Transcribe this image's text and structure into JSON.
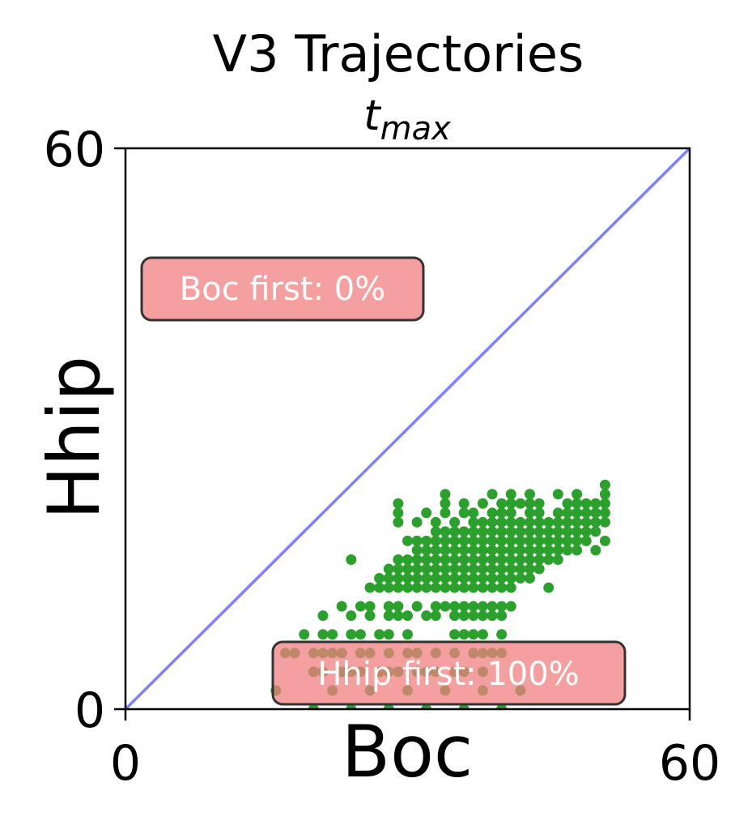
{
  "chart_data": {
    "type": "scatter",
    "title": "V3 Trajectories",
    "subtitle_base": "t",
    "subtitle_sub": "max",
    "xlabel": "Boc",
    "ylabel": "Hhip",
    "xlim": [
      0,
      60
    ],
    "ylim": [
      0,
      60
    ],
    "xticks": [
      "0",
      "60"
    ],
    "yticks": [
      "0",
      "60"
    ],
    "grid": false,
    "reference_line": {
      "from": [
        0,
        0
      ],
      "to": [
        60,
        60
      ],
      "color": "#8080ff"
    },
    "point_color": "#2ca02c",
    "annotations": [
      {
        "text": "Boc first: 0%",
        "anchor_data": [
          2,
          45
        ]
      },
      {
        "text": "Hhip first: 100%",
        "anchor_data": [
          16,
          2
        ]
      }
    ],
    "annotation_fill": "#f08080",
    "annotation_border": "#333333",
    "points": [
      [
        16,
        2
      ],
      [
        20,
        0
      ],
      [
        22,
        2
      ],
      [
        24,
        0
      ],
      [
        26,
        2
      ],
      [
        28,
        0
      ],
      [
        30,
        2
      ],
      [
        32,
        0
      ],
      [
        34,
        2
      ],
      [
        36,
        0
      ],
      [
        38,
        2
      ],
      [
        40,
        0
      ],
      [
        42,
        2
      ],
      [
        20,
        4
      ],
      [
        21,
        4
      ],
      [
        23,
        4
      ],
      [
        24,
        4
      ],
      [
        25,
        4
      ],
      [
        27,
        4
      ],
      [
        28,
        4
      ],
      [
        29,
        4
      ],
      [
        31,
        4
      ],
      [
        32,
        4
      ],
      [
        33,
        4
      ],
      [
        35,
        4
      ],
      [
        36,
        4
      ],
      [
        38,
        4
      ],
      [
        17,
        6
      ],
      [
        18,
        6
      ],
      [
        20,
        6
      ],
      [
        21,
        6
      ],
      [
        22,
        6
      ],
      [
        23,
        6
      ],
      [
        25,
        6
      ],
      [
        26,
        6
      ],
      [
        28,
        6
      ],
      [
        30,
        6
      ],
      [
        31,
        6
      ],
      [
        33,
        6
      ],
      [
        35,
        6
      ],
      [
        37,
        6
      ],
      [
        38,
        6
      ],
      [
        39,
        6
      ],
      [
        40,
        6
      ],
      [
        19,
        8
      ],
      [
        21,
        8
      ],
      [
        22,
        8
      ],
      [
        24,
        8
      ],
      [
        25,
        8
      ],
      [
        27,
        8
      ],
      [
        28,
        8
      ],
      [
        30,
        8
      ],
      [
        35,
        8
      ],
      [
        36,
        8
      ],
      [
        37,
        8
      ],
      [
        38,
        8
      ],
      [
        40,
        8
      ],
      [
        21,
        10
      ],
      [
        24,
        10
      ],
      [
        26,
        10
      ],
      [
        28,
        10
      ],
      [
        29,
        10
      ],
      [
        30,
        10
      ],
      [
        32,
        10
      ],
      [
        33,
        10
      ],
      [
        35,
        10
      ],
      [
        36,
        10
      ],
      [
        37,
        10
      ],
      [
        38,
        10
      ],
      [
        39,
        10
      ],
      [
        40,
        10
      ],
      [
        23,
        11
      ],
      [
        25,
        11
      ],
      [
        26,
        11
      ],
      [
        28,
        11
      ],
      [
        29,
        11
      ],
      [
        31,
        11
      ],
      [
        33,
        11
      ],
      [
        34,
        11
      ],
      [
        35,
        11
      ],
      [
        36,
        11
      ],
      [
        37,
        11
      ],
      [
        38,
        11
      ],
      [
        39,
        11
      ],
      [
        40,
        11
      ],
      [
        41,
        11
      ],
      [
        26,
        13
      ],
      [
        27,
        13
      ],
      [
        28,
        13
      ],
      [
        29,
        13
      ],
      [
        30,
        13
      ],
      [
        31,
        13
      ],
      [
        32,
        13
      ],
      [
        33,
        13
      ],
      [
        34,
        13
      ],
      [
        35,
        13
      ],
      [
        36,
        13
      ],
      [
        37,
        13
      ],
      [
        38,
        13
      ],
      [
        39,
        13
      ],
      [
        40,
        13
      ],
      [
        41,
        13
      ],
      [
        45,
        13
      ],
      [
        27,
        14
      ],
      [
        28,
        14
      ],
      [
        29,
        14
      ],
      [
        30,
        14
      ],
      [
        31,
        14
      ],
      [
        32,
        14
      ],
      [
        33,
        14
      ],
      [
        34,
        14
      ],
      [
        35,
        14
      ],
      [
        36,
        14
      ],
      [
        37,
        14
      ],
      [
        38,
        14
      ],
      [
        39,
        14
      ],
      [
        40,
        14
      ],
      [
        41,
        14
      ],
      [
        42,
        14
      ],
      [
        43,
        14
      ],
      [
        28,
        15
      ],
      [
        29,
        15
      ],
      [
        30,
        15
      ],
      [
        31,
        15
      ],
      [
        32,
        15
      ],
      [
        33,
        15
      ],
      [
        34,
        15
      ],
      [
        35,
        15
      ],
      [
        36,
        15
      ],
      [
        37,
        15
      ],
      [
        38,
        15
      ],
      [
        39,
        15
      ],
      [
        40,
        15
      ],
      [
        41,
        15
      ],
      [
        42,
        15
      ],
      [
        43,
        15
      ],
      [
        44,
        15
      ],
      [
        24,
        16
      ],
      [
        29,
        16
      ],
      [
        30,
        16
      ],
      [
        31,
        16
      ],
      [
        32,
        16
      ],
      [
        33,
        16
      ],
      [
        34,
        16
      ],
      [
        35,
        16
      ],
      [
        36,
        16
      ],
      [
        37,
        16
      ],
      [
        38,
        16
      ],
      [
        39,
        16
      ],
      [
        40,
        16
      ],
      [
        41,
        16
      ],
      [
        42,
        16
      ],
      [
        43,
        16
      ],
      [
        44,
        16
      ],
      [
        45,
        16
      ],
      [
        46,
        16
      ],
      [
        31,
        17
      ],
      [
        32,
        17
      ],
      [
        33,
        17
      ],
      [
        34,
        17
      ],
      [
        35,
        17
      ],
      [
        36,
        17
      ],
      [
        37,
        17
      ],
      [
        38,
        17
      ],
      [
        39,
        17
      ],
      [
        40,
        17
      ],
      [
        41,
        17
      ],
      [
        42,
        17
      ],
      [
        43,
        17
      ],
      [
        44,
        17
      ],
      [
        45,
        17
      ],
      [
        46,
        17
      ],
      [
        47,
        17
      ],
      [
        48,
        17
      ],
      [
        50,
        17
      ],
      [
        30,
        18
      ],
      [
        31,
        18
      ],
      [
        32,
        18
      ],
      [
        33,
        18
      ],
      [
        34,
        18
      ],
      [
        35,
        18
      ],
      [
        36,
        18
      ],
      [
        37,
        18
      ],
      [
        38,
        18
      ],
      [
        39,
        18
      ],
      [
        40,
        18
      ],
      [
        41,
        18
      ],
      [
        42,
        18
      ],
      [
        43,
        18
      ],
      [
        44,
        18
      ],
      [
        45,
        18
      ],
      [
        46,
        18
      ],
      [
        47,
        18
      ],
      [
        48,
        18
      ],
      [
        49,
        18
      ],
      [
        51,
        18
      ],
      [
        33,
        19
      ],
      [
        34,
        19
      ],
      [
        35,
        19
      ],
      [
        36,
        19
      ],
      [
        37,
        19
      ],
      [
        38,
        19
      ],
      [
        39,
        19
      ],
      [
        40,
        19
      ],
      [
        41,
        19
      ],
      [
        42,
        19
      ],
      [
        43,
        19
      ],
      [
        44,
        19
      ],
      [
        45,
        19
      ],
      [
        46,
        19
      ],
      [
        47,
        19
      ],
      [
        48,
        19
      ],
      [
        49,
        19
      ],
      [
        50,
        19
      ],
      [
        29,
        20
      ],
      [
        31,
        20
      ],
      [
        33,
        20
      ],
      [
        35,
        20
      ],
      [
        37,
        20
      ],
      [
        38,
        20
      ],
      [
        39,
        20
      ],
      [
        40,
        20
      ],
      [
        41,
        20
      ],
      [
        42,
        20
      ],
      [
        43,
        20
      ],
      [
        44,
        20
      ],
      [
        45,
        20
      ],
      [
        46,
        20
      ],
      [
        47,
        20
      ],
      [
        48,
        20
      ],
      [
        49,
        20
      ],
      [
        50,
        20
      ],
      [
        51,
        20
      ],
      [
        29,
        21
      ],
      [
        32,
        21
      ],
      [
        34,
        21
      ],
      [
        36,
        21
      ],
      [
        37,
        21
      ],
      [
        39,
        21
      ],
      [
        40,
        21
      ],
      [
        41,
        21
      ],
      [
        43,
        21
      ],
      [
        44,
        21
      ],
      [
        46,
        21
      ],
      [
        47,
        21
      ],
      [
        48,
        21
      ],
      [
        49,
        21
      ],
      [
        50,
        21
      ],
      [
        51,
        21
      ],
      [
        29,
        22
      ],
      [
        34,
        22
      ],
      [
        36,
        22
      ],
      [
        38,
        22
      ],
      [
        40,
        22
      ],
      [
        41,
        22
      ],
      [
        42,
        22
      ],
      [
        43,
        22
      ],
      [
        44,
        22
      ],
      [
        47,
        22
      ],
      [
        48,
        22
      ],
      [
        49,
        22
      ],
      [
        50,
        22
      ],
      [
        51,
        22
      ],
      [
        34,
        23
      ],
      [
        39,
        23
      ],
      [
        41,
        23
      ],
      [
        43,
        23
      ],
      [
        46,
        23
      ],
      [
        48,
        23
      ],
      [
        51,
        23
      ],
      [
        51,
        24
      ]
    ]
  }
}
